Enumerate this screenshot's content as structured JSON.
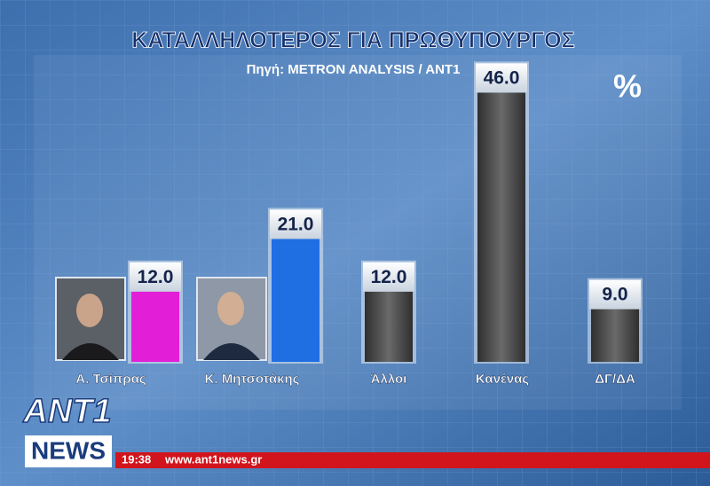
{
  "chart_data": {
    "type": "bar",
    "title": "ΚΑΤΑΛΛΗΛΟΤΕΡΟΣ ΓΙΑ ΠΡΩΘΥΠΟΥΡΓΟΣ",
    "subtitle": "Πηγή: METRON ANALYSIS / ANT1",
    "unit": "%",
    "categories": [
      "Α. Τσίπρας",
      "Κ. Μητσοτάκης",
      "Άλλοι",
      "Κανένας",
      "ΔΓ/ΔΑ"
    ],
    "values": [
      12,
      21,
      12,
      46,
      9
    ],
    "value_labels": [
      "12.0",
      "21.0",
      "12.0",
      "46.0",
      "9.0"
    ],
    "colors": [
      "#e21fd6",
      "#1f6fe3",
      "#4a4a4a",
      "#4a4a4a",
      "#4a4a4a"
    ]
  },
  "broadcast": {
    "logo_top": "ANT1",
    "logo_bottom": "NEWS",
    "time": "19:38",
    "url": "www.ant1news.gr"
  }
}
